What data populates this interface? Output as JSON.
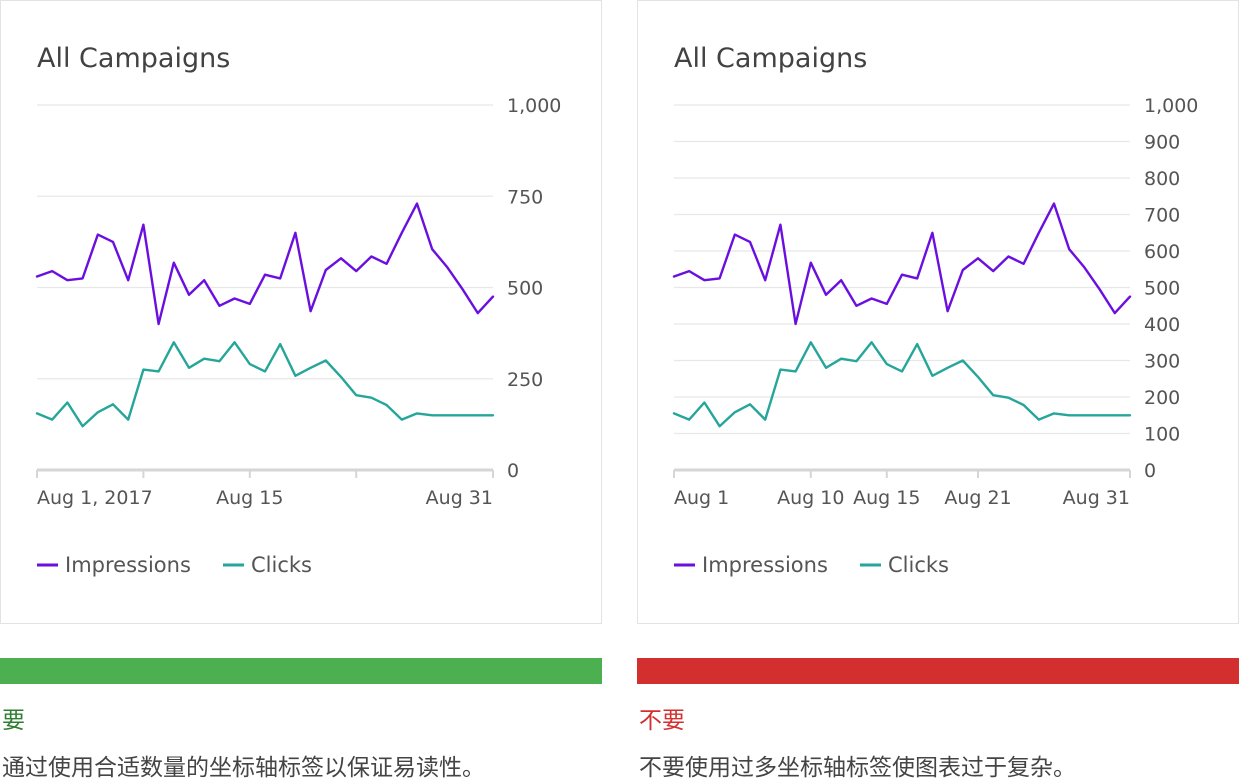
{
  "colors": {
    "impressions": "#6a0fe0",
    "clicks": "#26a69a",
    "good": "#4caf50",
    "bad": "#d32f2f",
    "grid": "#e8e8e8",
    "axis": "#d6d6d6",
    "text": "#555555",
    "title": "#424242"
  },
  "panels": [
    {
      "verdict": "要",
      "verdict_color": "#2e7d32",
      "bar_color": "#4caf50",
      "description": "通过使用合适数量的坐标轴标签以保证易读性。",
      "chart_data": {
        "type": "line",
        "title": "All Campaigns",
        "ylim": [
          0,
          1000
        ],
        "y_ticks": [
          {
            "value": 0,
            "label": "0"
          },
          {
            "value": 250,
            "label": "250"
          },
          {
            "value": 500,
            "label": "500"
          },
          {
            "value": 750,
            "label": "750"
          },
          {
            "value": 1000,
            "label": "1,000"
          }
        ],
        "x_range": [
          1,
          31
        ],
        "x_tick_marks": [
          1,
          8,
          15,
          22,
          31
        ],
        "x_labels": [
          {
            "day": 1,
            "label": "Aug 1, 2017",
            "anchor": "start"
          },
          {
            "day": 15,
            "label": "Aug 15",
            "anchor": "middle"
          },
          {
            "day": 31,
            "label": "Aug 31",
            "anchor": "end"
          }
        ],
        "grid": true,
        "legend_position": "bottom-left",
        "series": [
          {
            "name": "Impressions",
            "color": "#6a0fe0",
            "x": [
              1,
              2,
              3,
              4,
              5,
              6,
              7,
              8,
              9,
              10,
              11,
              12,
              13,
              14,
              15,
              16,
              17,
              18,
              19,
              20,
              21,
              22,
              23,
              24,
              25,
              26,
              27,
              28,
              29,
              30,
              31
            ],
            "values": [
              530,
              545,
              520,
              525,
              645,
              625,
              520,
              672,
              400,
              568,
              480,
              520,
              450,
              470,
              455,
              535,
              525,
              650,
              435,
              548,
              580,
              545,
              585,
              565,
              650,
              730,
              605,
              555,
              495,
              430,
              475
            ]
          },
          {
            "name": "Clicks",
            "color": "#26a69a",
            "x": [
              1,
              2,
              3,
              4,
              5,
              6,
              7,
              8,
              9,
              10,
              11,
              12,
              13,
              14,
              15,
              16,
              17,
              18,
              19,
              20,
              21,
              22,
              23,
              24,
              25,
              26,
              27,
              28,
              29,
              30,
              31
            ],
            "values": [
              155,
              138,
              185,
              120,
              158,
              180,
              138,
              275,
              270,
              350,
              280,
              305,
              298,
              350,
              290,
              270,
              345,
              258,
              280,
              300,
              255,
              205,
              198,
              178,
              138,
              155,
              150,
              150,
              150,
              150,
              150
            ]
          }
        ]
      }
    },
    {
      "verdict": "不要",
      "verdict_color": "#d32f2f",
      "bar_color": "#d32f2f",
      "description": "不要使用过多坐标轴标签使图表过于复杂。",
      "chart_data": {
        "type": "line",
        "title": "All Campaigns",
        "ylim": [
          0,
          1000
        ],
        "y_ticks": [
          {
            "value": 0,
            "label": "0"
          },
          {
            "value": 100,
            "label": "100"
          },
          {
            "value": 200,
            "label": "200"
          },
          {
            "value": 300,
            "label": "300"
          },
          {
            "value": 400,
            "label": "400"
          },
          {
            "value": 500,
            "label": "500"
          },
          {
            "value": 600,
            "label": "600"
          },
          {
            "value": 700,
            "label": "700"
          },
          {
            "value": 800,
            "label": "800"
          },
          {
            "value": 900,
            "label": "900"
          },
          {
            "value": 1000,
            "label": "1,000"
          }
        ],
        "x_range": [
          1,
          31
        ],
        "x_tick_marks": [
          1,
          10,
          15,
          21,
          31
        ],
        "x_labels": [
          {
            "day": 1,
            "label": "Aug 1",
            "anchor": "start"
          },
          {
            "day": 10,
            "label": "Aug 10",
            "anchor": "middle"
          },
          {
            "day": 15,
            "label": "Aug 15",
            "anchor": "middle"
          },
          {
            "day": 21,
            "label": "Aug 21",
            "anchor": "middle"
          },
          {
            "day": 31,
            "label": "Aug 31",
            "anchor": "end"
          }
        ],
        "grid": true,
        "legend_position": "bottom-left",
        "series": [
          {
            "name": "Impressions",
            "color": "#6a0fe0",
            "x": [
              1,
              2,
              3,
              4,
              5,
              6,
              7,
              8,
              9,
              10,
              11,
              12,
              13,
              14,
              15,
              16,
              17,
              18,
              19,
              20,
              21,
              22,
              23,
              24,
              25,
              26,
              27,
              28,
              29,
              30,
              31
            ],
            "values": [
              530,
              545,
              520,
              525,
              645,
              625,
              520,
              672,
              400,
              568,
              480,
              520,
              450,
              470,
              455,
              535,
              525,
              650,
              435,
              548,
              580,
              545,
              585,
              565,
              650,
              730,
              605,
              555,
              495,
              430,
              475
            ]
          },
          {
            "name": "Clicks",
            "color": "#26a69a",
            "x": [
              1,
              2,
              3,
              4,
              5,
              6,
              7,
              8,
              9,
              10,
              11,
              12,
              13,
              14,
              15,
              16,
              17,
              18,
              19,
              20,
              21,
              22,
              23,
              24,
              25,
              26,
              27,
              28,
              29,
              30,
              31
            ],
            "values": [
              155,
              138,
              185,
              120,
              158,
              180,
              138,
              275,
              270,
              350,
              280,
              305,
              298,
              350,
              290,
              270,
              345,
              258,
              280,
              300,
              255,
              205,
              198,
              178,
              138,
              155,
              150,
              150,
              150,
              150,
              150
            ]
          }
        ]
      }
    }
  ]
}
